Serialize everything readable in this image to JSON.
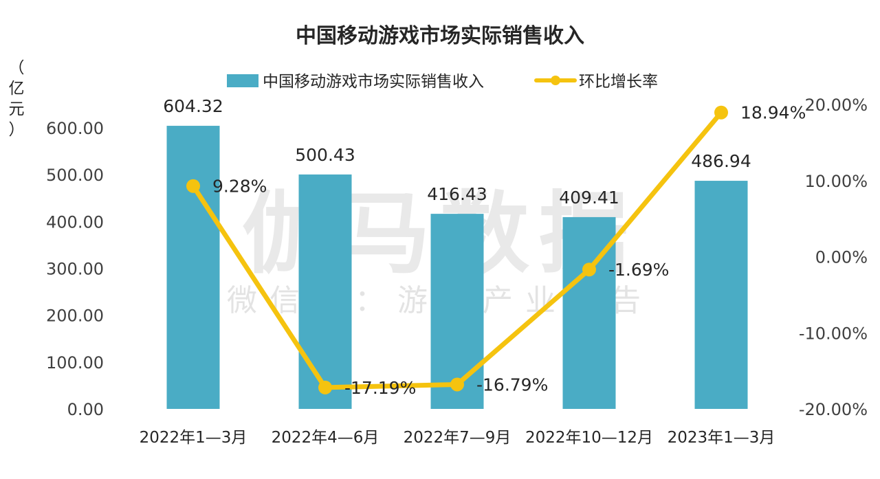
{
  "chart_data": {
    "type": "bar",
    "title": "中国移动游戏市场实际销售收入",
    "y_unit_label": [
      "（",
      "亿",
      "元",
      "）"
    ],
    "categories": [
      "2022年1—3月",
      "2022年4—6月",
      "2022年7—9月",
      "2022年10—12月",
      "2023年1—3月"
    ],
    "series": [
      {
        "name": "中国移动游戏市场实际销售收入",
        "type": "bar",
        "axis": "left",
        "values": [
          604.32,
          500.43,
          416.43,
          409.41,
          486.94
        ],
        "labels": [
          "604.32",
          "500.43",
          "416.43",
          "409.41",
          "486.94"
        ],
        "color": "#4aacc5"
      },
      {
        "name": "环比增长率",
        "type": "line",
        "axis": "right",
        "values": [
          9.28,
          -17.19,
          -16.79,
          -1.69,
          18.94
        ],
        "labels": [
          "9.28%",
          "-17.19%",
          "-16.79%",
          "-1.69%",
          "18.94%"
        ],
        "color": "#f5c30f"
      }
    ],
    "y_left": {
      "min": 0,
      "max": 600,
      "ticks": [
        "0.00",
        "100.00",
        "200.00",
        "300.00",
        "400.00",
        "500.00",
        "600.00"
      ]
    },
    "y_right": {
      "min": -20,
      "max": 20,
      "ticks": [
        "-20.00%",
        "-10.00%",
        "0.00%",
        "10.00%",
        "20.00%"
      ]
    },
    "grid": false,
    "legend_position": "top",
    "watermark": {
      "main": "伽马数据",
      "sub": "微信号：游戏产业报告"
    }
  }
}
